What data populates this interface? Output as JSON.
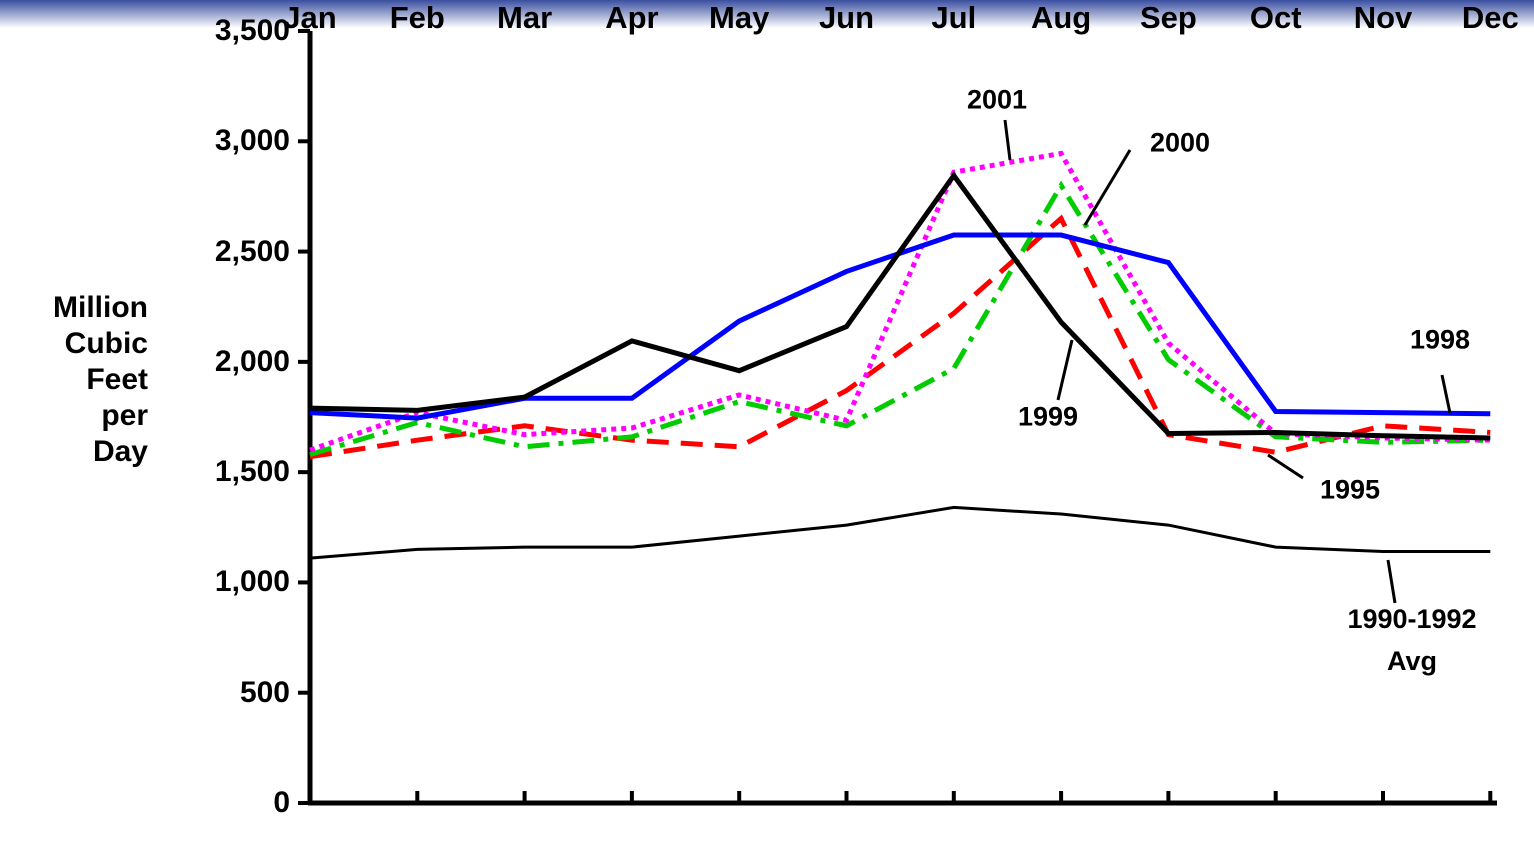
{
  "chart_data": {
    "type": "line",
    "y_axis_label": "Million Cubic Feet per Day",
    "categories": [
      "Jan",
      "Feb",
      "Mar",
      "Apr",
      "May",
      "Jun",
      "Jul",
      "Aug",
      "Sep",
      "Oct",
      "Nov",
      "Dec"
    ],
    "series": [
      {
        "name": "1990-1992 Avg",
        "color": "#000000",
        "style": "solid-thin",
        "values": [
          1110,
          1150,
          1160,
          1160,
          1210,
          1260,
          1340,
          1310,
          1260,
          1160,
          1140,
          1140
        ]
      },
      {
        "name": "1995",
        "color": "#ff0000",
        "style": "dashed",
        "values": [
          1570,
          1645,
          1710,
          1645,
          1615,
          1870,
          2220,
          2650,
          1670,
          1590,
          1710,
          1680
        ]
      },
      {
        "name": "2000",
        "color": "#00cc00",
        "style": "dash-dot",
        "values": [
          1580,
          1725,
          1615,
          1660,
          1820,
          1710,
          1970,
          2800,
          2010,
          1660,
          1635,
          1645
        ]
      },
      {
        "name": "2001",
        "color": "#ff00ff",
        "style": "dotted",
        "values": [
          1600,
          1770,
          1670,
          1700,
          1850,
          1735,
          2860,
          2945,
          2085,
          1675,
          1655,
          1645
        ]
      },
      {
        "name": "1998",
        "color": "#0000ff",
        "style": "solid",
        "values": [
          1770,
          1745,
          1835,
          1835,
          2185,
          2410,
          2575,
          2575,
          2450,
          1775,
          1770,
          1765
        ]
      },
      {
        "name": "1999",
        "color": "#000000",
        "style": "solid",
        "values": [
          1790,
          1780,
          1840,
          2095,
          1960,
          2160,
          2845,
          2180,
          1675,
          1680,
          1665,
          1655
        ]
      }
    ],
    "ylim": [
      0,
      3500
    ],
    "yticks": [
      0,
      500,
      {
        "value": 1000,
        "label": "1,000"
      },
      {
        "value": 1500,
        "label": "1,500"
      },
      {
        "value": 2000,
        "label": "2,000"
      },
      {
        "value": 2500,
        "label": "2,500"
      },
      {
        "value": 3000,
        "label": "3,000"
      },
      {
        "value": 3500,
        "label": "3,500"
      }
    ],
    "grid": false
  }
}
